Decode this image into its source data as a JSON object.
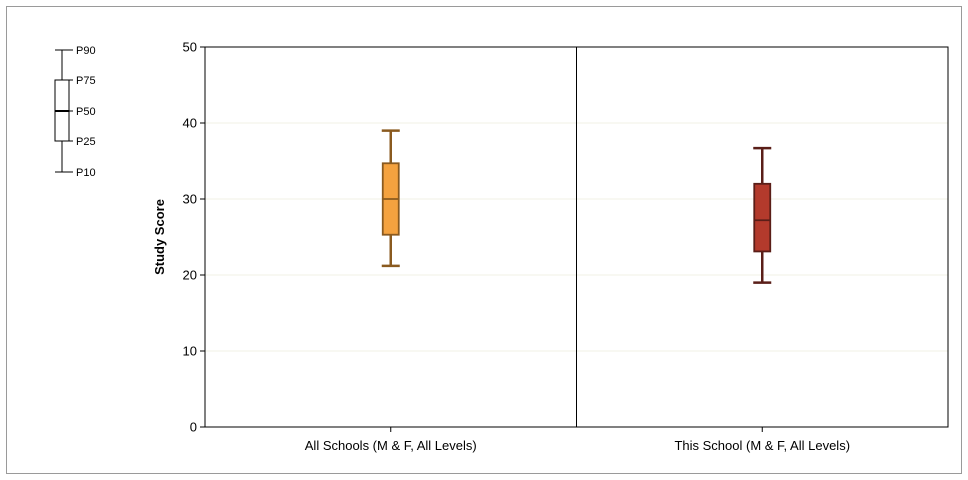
{
  "chart_data": {
    "type": "boxplot",
    "ylabel": "Study Score",
    "ylim": [
      0,
      50
    ],
    "yticks": [
      0,
      10,
      20,
      30,
      40,
      50
    ],
    "grid": true,
    "legend": {
      "placement": "top-left",
      "labels": [
        "P90",
        "P75",
        "P50",
        "P25",
        "P10"
      ]
    },
    "categories": [
      "All Schools (M & F, All Levels)",
      "This School (M & F, All Levels)"
    ],
    "series": [
      {
        "category": "All Schools (M & F, All Levels)",
        "p10": 21.2,
        "p25": 25.3,
        "p50": 30.0,
        "p75": 34.7,
        "p90": 39.0,
        "fill": "#f4a23f",
        "stroke": "#8a5a1f"
      },
      {
        "category": "This School (M & F, All Levels)",
        "p10": 19.0,
        "p25": 23.1,
        "p50": 27.2,
        "p75": 32.0,
        "p90": 36.7,
        "fill": "#b33a2c",
        "stroke": "#5a1e18"
      }
    ]
  },
  "colors": {
    "axis": "#000000",
    "grid": "#f1f1e6",
    "text": "#000000"
  }
}
